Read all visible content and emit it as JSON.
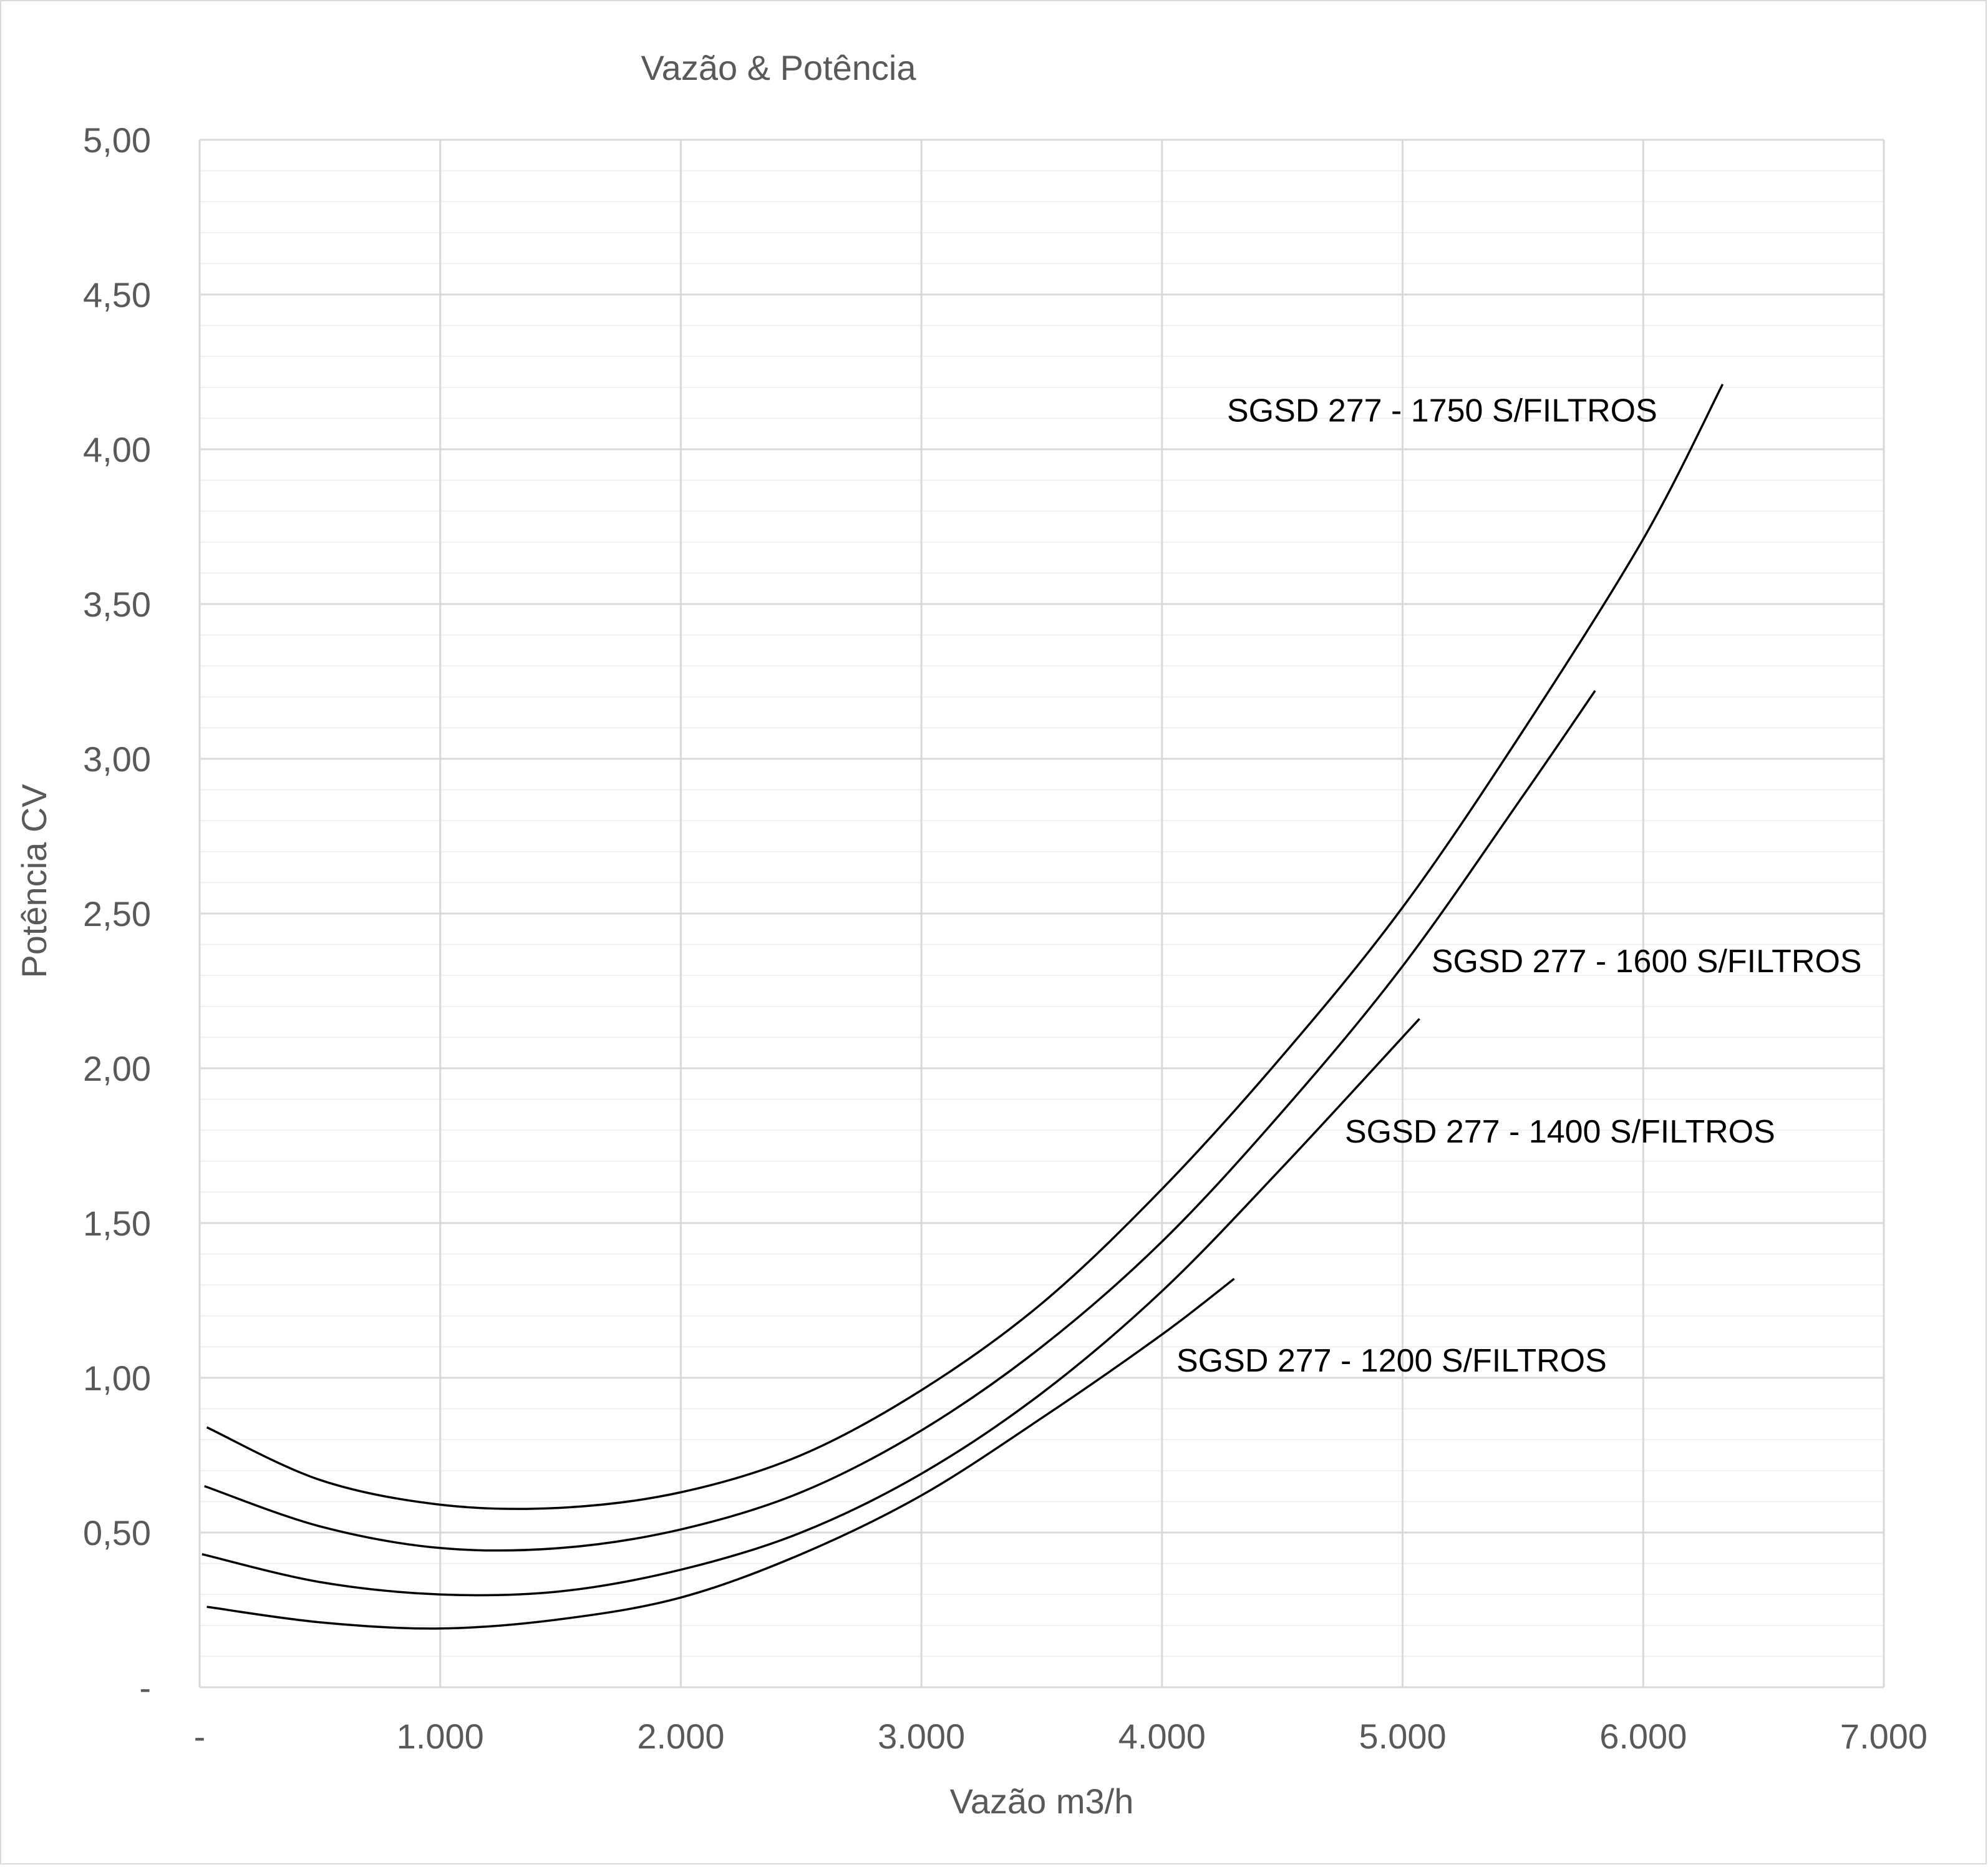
{
  "chart_data": {
    "type": "line",
    "title": "Vazão & Potência",
    "xlabel": "Vazão m3/h",
    "ylabel": "Potência CV",
    "xlim": [
      0,
      7000
    ],
    "ylim": [
      0,
      5
    ],
    "x_ticks": [
      0,
      1000,
      2000,
      3000,
      4000,
      5000,
      6000,
      7000
    ],
    "x_tick_labels": [
      "-",
      "1.000",
      "2.000",
      "3.000",
      "4.000",
      "5.000",
      "6.000",
      "7.000"
    ],
    "y_ticks": [
      0,
      0.5,
      1,
      1.5,
      2,
      2.5,
      3,
      3.5,
      4,
      4.5,
      5
    ],
    "y_tick_labels": [
      "-",
      "0,50",
      "1,00",
      "1,50",
      "2,00",
      "2,50",
      "3,00",
      "3,50",
      "4,00",
      "4,50",
      "5,00"
    ],
    "grid": {
      "major": true,
      "minor_y": true
    },
    "series": [
      {
        "name": "SGSD 277 - 1750 S/FILTROS",
        "x": [
          30,
          500,
          1000,
          1500,
          2000,
          2500,
          3000,
          3500,
          4000,
          4500,
          5000,
          5500,
          6000,
          6330
        ],
        "y": [
          0.84,
          0.67,
          0.59,
          0.58,
          0.63,
          0.75,
          0.96,
          1.24,
          1.61,
          2.04,
          2.52,
          3.09,
          3.71,
          4.21
        ]
      },
      {
        "name": "SGSD 277 - 1600 S/FILTROS",
        "x": [
          20,
          500,
          1000,
          1500,
          2000,
          2500,
          3000,
          3500,
          4000,
          4500,
          5000,
          5500,
          5800
        ],
        "y": [
          0.65,
          0.52,
          0.45,
          0.45,
          0.51,
          0.63,
          0.83,
          1.1,
          1.44,
          1.86,
          2.33,
          2.88,
          3.22
        ]
      },
      {
        "name": "SGSD 277 - 1400 S/FILTROS",
        "x": [
          10,
          500,
          1000,
          1500,
          2000,
          2500,
          3000,
          3500,
          4000,
          4500,
          5070
        ],
        "y": [
          0.43,
          0.34,
          0.3,
          0.31,
          0.38,
          0.5,
          0.69,
          0.95,
          1.28,
          1.68,
          2.16
        ]
      },
      {
        "name": "SGSD 277 - 1200 S/FILTROS",
        "x": [
          30,
          500,
          1000,
          1500,
          2000,
          2500,
          3000,
          3500,
          4000,
          4300
        ],
        "y": [
          0.26,
          0.21,
          0.19,
          0.22,
          0.29,
          0.43,
          0.62,
          0.87,
          1.14,
          1.32
        ]
      }
    ],
    "annotations": [
      {
        "text": "SGSD 277 - 1750 S/FILTROS",
        "x": 4270,
        "y": 4.09
      },
      {
        "text": "SGSD 277 - 1600 S/FILTROS",
        "x": 5120,
        "y": 2.31
      },
      {
        "text": "SGSD 277 - 1400 S/FILTROS",
        "x": 4760,
        "y": 1.76
      },
      {
        "text": "SGSD 277 - 1200 S/FILTROS",
        "x": 4060,
        "y": 1.02
      }
    ]
  }
}
